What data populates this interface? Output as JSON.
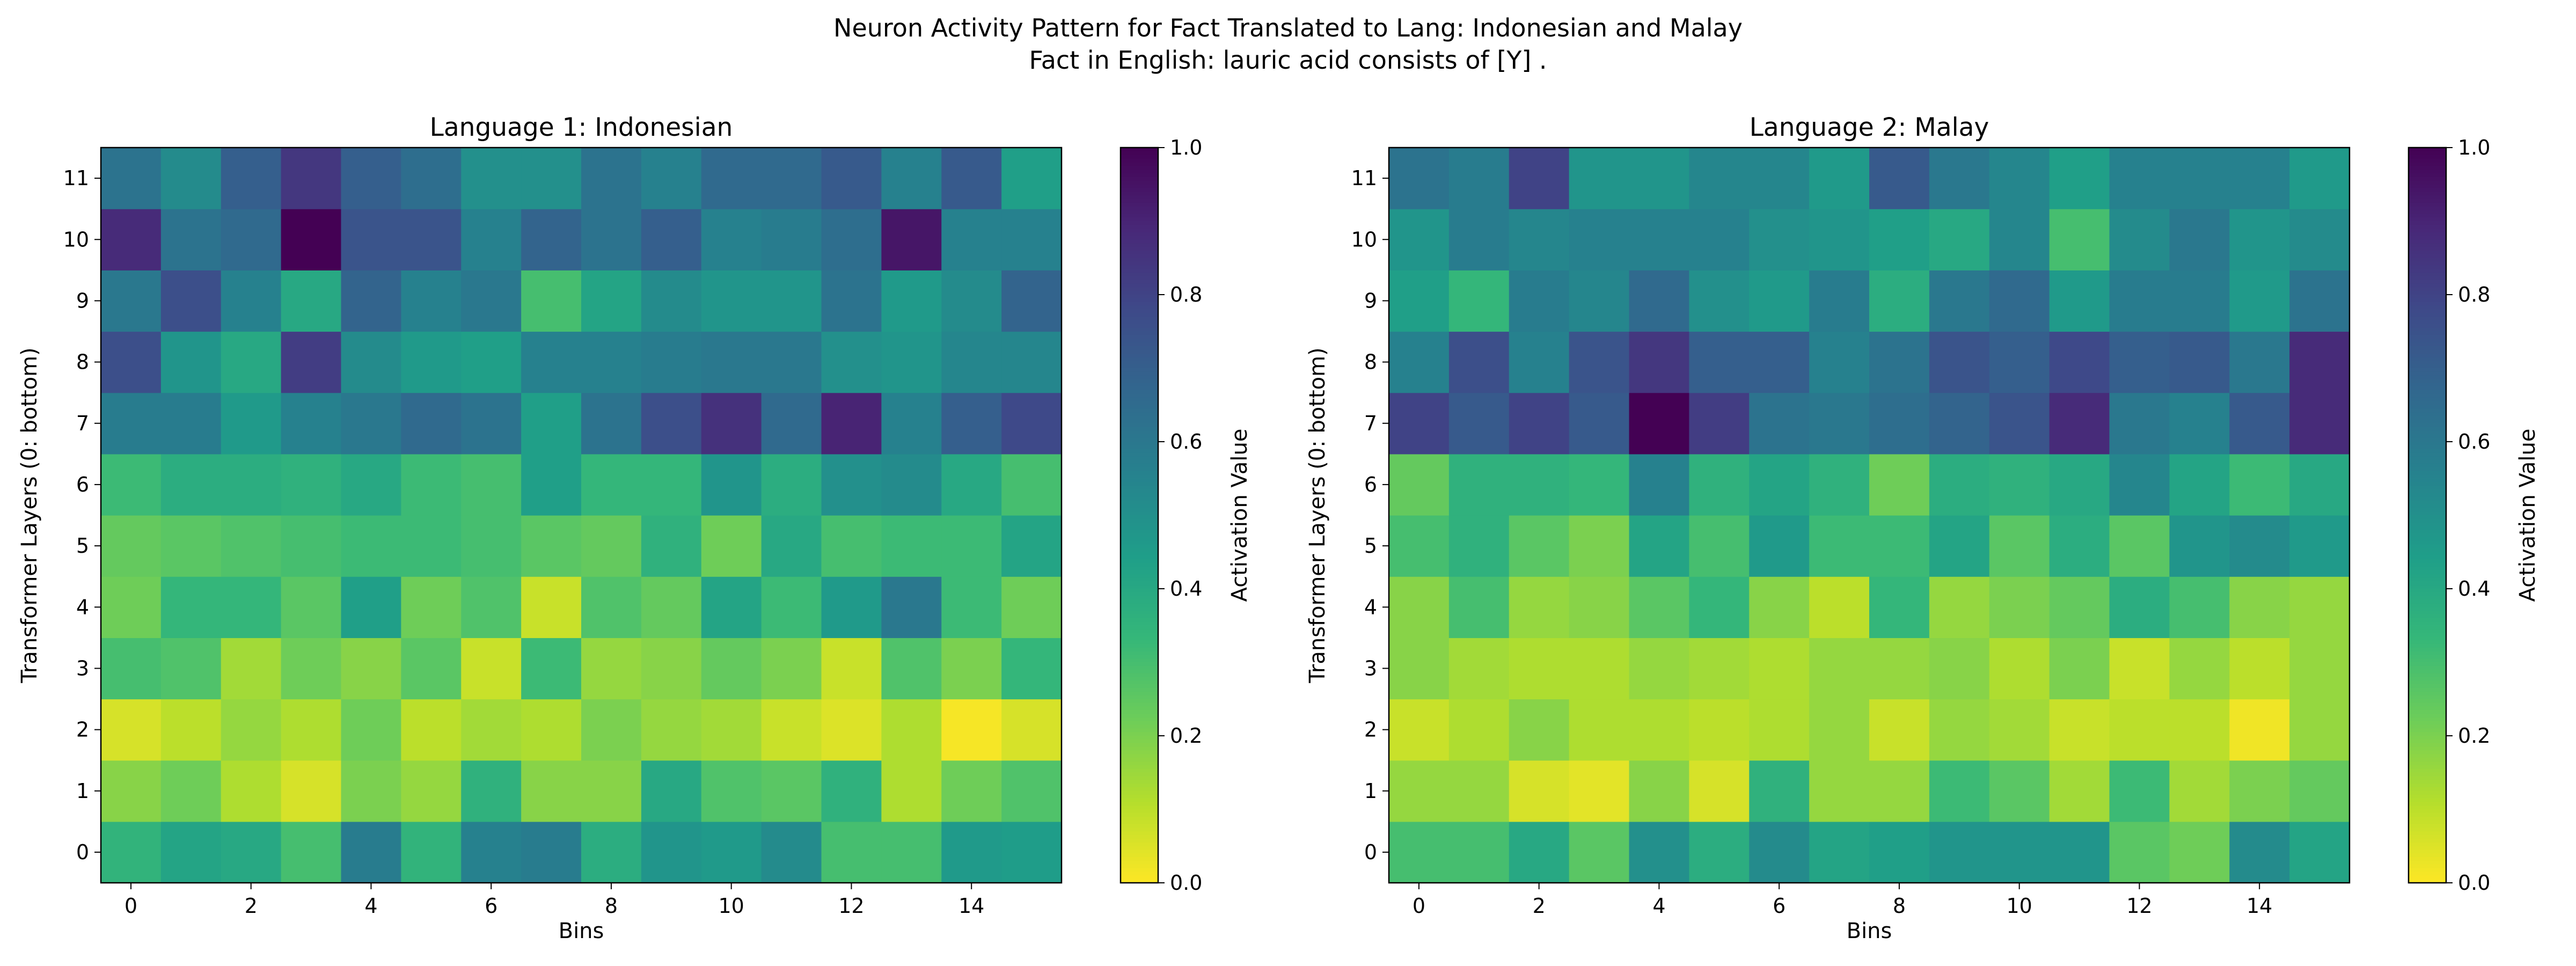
{
  "suptitle": {
    "line1": "Neuron Activity Pattern for Fact Translated to Lang: Indonesian and Malay",
    "line2": "Fact in English: lauric acid consists of [Y] ."
  },
  "colors": {
    "colormap": "viridis_r",
    "low": "#fde725",
    "high": "#440154"
  },
  "chart_data": [
    {
      "type": "heatmap",
      "title": "Language 1: Indonesian",
      "xlabel": "Bins",
      "ylabel": "Transformer Layers (0: bottom)",
      "x_ticks": [
        "0",
        "2",
        "4",
        "6",
        "8",
        "10",
        "12",
        "14"
      ],
      "y_ticks": [
        "0",
        "1",
        "2",
        "3",
        "4",
        "5",
        "6",
        "7",
        "8",
        "9",
        "10",
        "11"
      ],
      "n_bins": 16,
      "n_layers": 12,
      "colorbar": {
        "label": "Activation Value",
        "min": 0,
        "max": 1,
        "ticks": [
          "0.0",
          "0.2",
          "0.4",
          "0.6",
          "0.8",
          "1.0"
        ]
      },
      "values": [
        [
          0.35,
          0.42,
          0.4,
          0.3,
          0.58,
          0.35,
          0.56,
          0.58,
          0.38,
          0.48,
          0.46,
          0.52,
          0.3,
          0.3,
          0.46,
          0.45
        ],
        [
          0.18,
          0.22,
          0.12,
          0.06,
          0.2,
          0.16,
          0.36,
          0.18,
          0.18,
          0.4,
          0.28,
          0.26,
          0.36,
          0.12,
          0.22,
          0.28
        ],
        [
          0.06,
          0.1,
          0.16,
          0.12,
          0.22,
          0.1,
          0.14,
          0.12,
          0.2,
          0.16,
          0.14,
          0.08,
          0.05,
          0.12,
          0.01,
          0.06
        ],
        [
          0.3,
          0.28,
          0.14,
          0.22,
          0.18,
          0.26,
          0.08,
          0.32,
          0.16,
          0.18,
          0.24,
          0.2,
          0.08,
          0.28,
          0.2,
          0.34
        ],
        [
          0.22,
          0.34,
          0.34,
          0.26,
          0.44,
          0.22,
          0.28,
          0.08,
          0.28,
          0.24,
          0.42,
          0.32,
          0.46,
          0.6,
          0.32,
          0.22
        ],
        [
          0.24,
          0.26,
          0.28,
          0.3,
          0.32,
          0.32,
          0.3,
          0.26,
          0.24,
          0.36,
          0.22,
          0.4,
          0.3,
          0.32,
          0.32,
          0.42
        ],
        [
          0.32,
          0.38,
          0.38,
          0.36,
          0.4,
          0.32,
          0.3,
          0.44,
          0.34,
          0.34,
          0.48,
          0.38,
          0.5,
          0.52,
          0.4,
          0.3
        ],
        [
          0.58,
          0.58,
          0.46,
          0.56,
          0.6,
          0.66,
          0.62,
          0.44,
          0.62,
          0.76,
          0.86,
          0.66,
          0.9,
          0.56,
          0.7,
          0.78
        ],
        [
          0.76,
          0.48,
          0.4,
          0.82,
          0.52,
          0.46,
          0.44,
          0.56,
          0.56,
          0.58,
          0.6,
          0.6,
          0.5,
          0.48,
          0.54,
          0.54
        ],
        [
          0.6,
          0.76,
          0.56,
          0.4,
          0.68,
          0.56,
          0.6,
          0.3,
          0.42,
          0.52,
          0.48,
          0.48,
          0.62,
          0.46,
          0.52,
          0.68
        ],
        [
          0.88,
          0.62,
          0.66,
          1.0,
          0.74,
          0.74,
          0.56,
          0.68,
          0.62,
          0.7,
          0.56,
          0.58,
          0.64,
          0.94,
          0.56,
          0.56
        ],
        [
          0.62,
          0.52,
          0.7,
          0.84,
          0.7,
          0.64,
          0.5,
          0.5,
          0.62,
          0.56,
          0.66,
          0.66,
          0.72,
          0.56,
          0.72,
          0.44
        ]
      ]
    },
    {
      "type": "heatmap",
      "title": "Language 2: Malay",
      "xlabel": "Bins",
      "ylabel": "Transformer Layers (0: bottom)",
      "x_ticks": [
        "0",
        "2",
        "4",
        "6",
        "8",
        "10",
        "12",
        "14"
      ],
      "y_ticks": [
        "0",
        "1",
        "2",
        "3",
        "4",
        "5",
        "6",
        "7",
        "8",
        "9",
        "10",
        "11"
      ],
      "n_bins": 16,
      "n_layers": 12,
      "colorbar": {
        "label": "Activation Value",
        "min": 0,
        "max": 1,
        "ticks": [
          "0.0",
          "0.2",
          "0.4",
          "0.6",
          "0.8",
          "1.0"
        ]
      },
      "values": [
        [
          0.3,
          0.3,
          0.4,
          0.26,
          0.5,
          0.38,
          0.52,
          0.42,
          0.44,
          0.48,
          0.48,
          0.48,
          0.26,
          0.22,
          0.52,
          0.42
        ],
        [
          0.16,
          0.16,
          0.06,
          0.04,
          0.18,
          0.06,
          0.36,
          0.16,
          0.16,
          0.32,
          0.26,
          0.14,
          0.32,
          0.14,
          0.2,
          0.24
        ],
        [
          0.08,
          0.12,
          0.18,
          0.12,
          0.12,
          0.1,
          0.12,
          0.16,
          0.08,
          0.16,
          0.14,
          0.08,
          0.1,
          0.1,
          0.02,
          0.16
        ],
        [
          0.18,
          0.14,
          0.12,
          0.12,
          0.16,
          0.14,
          0.12,
          0.16,
          0.16,
          0.18,
          0.12,
          0.2,
          0.08,
          0.16,
          0.1,
          0.16
        ],
        [
          0.18,
          0.3,
          0.16,
          0.18,
          0.26,
          0.34,
          0.18,
          0.1,
          0.34,
          0.16,
          0.2,
          0.24,
          0.38,
          0.3,
          0.18,
          0.16
        ],
        [
          0.3,
          0.36,
          0.26,
          0.2,
          0.42,
          0.3,
          0.46,
          0.32,
          0.32,
          0.42,
          0.26,
          0.38,
          0.26,
          0.48,
          0.52,
          0.46
        ],
        [
          0.24,
          0.36,
          0.36,
          0.34,
          0.56,
          0.36,
          0.42,
          0.36,
          0.22,
          0.38,
          0.36,
          0.4,
          0.54,
          0.42,
          0.32,
          0.4
        ],
        [
          0.8,
          0.72,
          0.8,
          0.72,
          1.0,
          0.82,
          0.62,
          0.6,
          0.64,
          0.68,
          0.74,
          0.88,
          0.6,
          0.56,
          0.72,
          0.88
        ],
        [
          0.56,
          0.76,
          0.56,
          0.74,
          0.84,
          0.7,
          0.7,
          0.56,
          0.62,
          0.74,
          0.7,
          0.78,
          0.7,
          0.72,
          0.6,
          0.88
        ],
        [
          0.44,
          0.34,
          0.58,
          0.54,
          0.66,
          0.5,
          0.46,
          0.58,
          0.38,
          0.6,
          0.66,
          0.46,
          0.58,
          0.58,
          0.46,
          0.62
        ],
        [
          0.48,
          0.58,
          0.54,
          0.56,
          0.56,
          0.56,
          0.5,
          0.48,
          0.44,
          0.4,
          0.54,
          0.3,
          0.52,
          0.6,
          0.48,
          0.52
        ],
        [
          0.62,
          0.58,
          0.8,
          0.48,
          0.48,
          0.54,
          0.54,
          0.46,
          0.72,
          0.6,
          0.54,
          0.44,
          0.56,
          0.56,
          0.56,
          0.46
        ]
      ]
    }
  ]
}
